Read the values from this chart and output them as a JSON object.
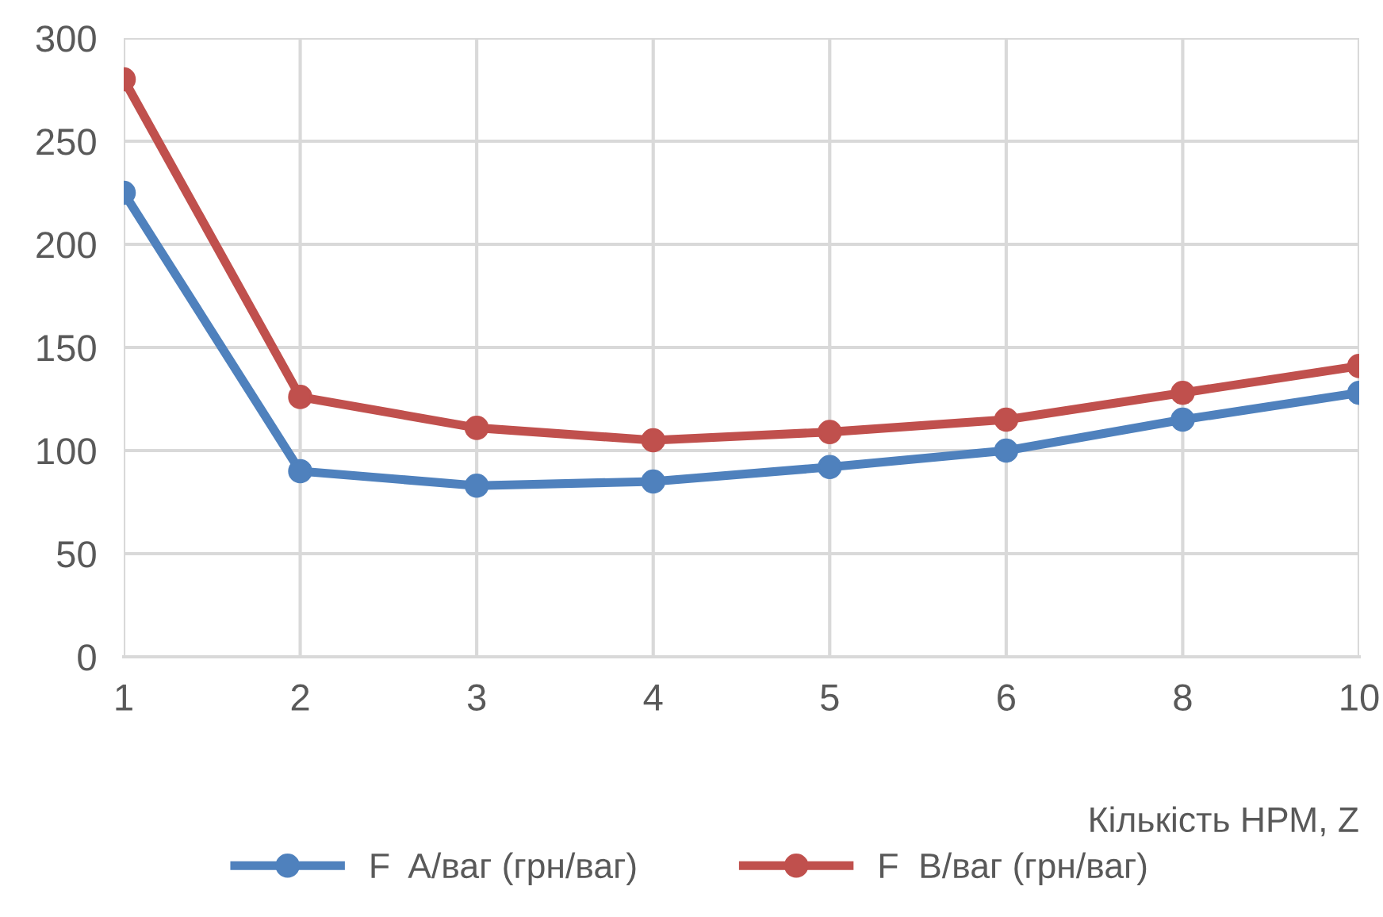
{
  "chart_data": {
    "type": "line",
    "xlabel": "Кількість НРМ, Z",
    "categories": [
      "1",
      "2",
      "3",
      "4",
      "5",
      "6",
      "8",
      "10"
    ],
    "series": [
      {
        "name": "F  A/ваг (грн/ваг)",
        "color": "#4f81bd",
        "values": [
          225,
          90,
          83,
          85,
          92,
          100,
          115,
          128
        ]
      },
      {
        "name": "F  B/ваг (грн/ваг)",
        "color": "#c0504d",
        "values": [
          280,
          126,
          111,
          105,
          109,
          115,
          128,
          141
        ]
      }
    ],
    "ylim": [
      0,
      300
    ],
    "yticks": [
      0,
      50,
      100,
      150,
      200,
      250,
      300
    ],
    "grid": true,
    "legend": "bottom",
    "marker": "circle",
    "line_style": "solid"
  }
}
